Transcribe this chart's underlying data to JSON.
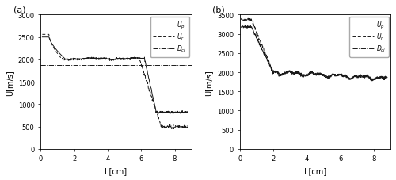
{
  "fig_width": 5.0,
  "fig_height": 2.28,
  "dpi": 100,
  "panel_a": {
    "label": "(a)",
    "xlim": [
      0,
      9
    ],
    "ylim": [
      0,
      3000
    ],
    "yticks": [
      0,
      500,
      1000,
      1500,
      2000,
      2500,
      3000
    ],
    "xticks": [
      0,
      2,
      4,
      6,
      8
    ],
    "xlabel": "L[cm]",
    "ylabel": "U[m/s]",
    "D_cj": 1870
  },
  "panel_b": {
    "label": "(b)",
    "xlim": [
      0,
      9
    ],
    "ylim": [
      0,
      3500
    ],
    "yticks": [
      0,
      500,
      1000,
      1500,
      2000,
      2500,
      3000,
      3500
    ],
    "xticks": [
      0,
      2,
      4,
      6,
      8
    ],
    "xlabel": "L[cm]",
    "ylabel": "U[m/s]",
    "D_cj": 1830
  },
  "line_color": "#1a1a1a",
  "background_color": "#ffffff"
}
